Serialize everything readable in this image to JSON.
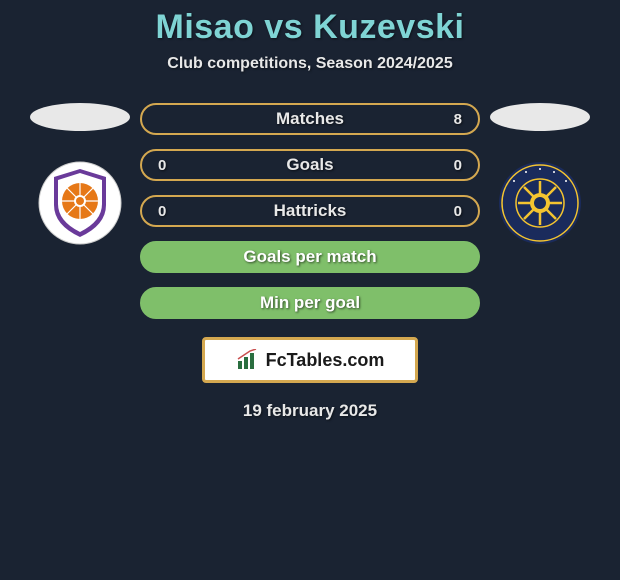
{
  "background_color": "#1a2332",
  "title": {
    "text": "Misao vs Kuzevski",
    "color": "#7fd4d4",
    "fontsize": 34
  },
  "subtitle": {
    "text": "Club competitions, Season 2024/2025",
    "color": "#e8e8e8",
    "fontsize": 16
  },
  "left_side": {
    "oval_color": "#e8e8e8",
    "club": {
      "name": "perth-glory",
      "outer_color": "#ffffff",
      "inner_bg": "#e67817",
      "accent_purple": "#6a3a9a",
      "accent_white": "#ffffff"
    }
  },
  "right_side": {
    "oval_color": "#e8e8e8",
    "club": {
      "name": "central-coast-mariners",
      "outer_color": "#1a2b5c",
      "inner_bg": "#1a2b5c",
      "accent_yellow": "#f4c430",
      "accent_white": "#ffffff"
    }
  },
  "stats": [
    {
      "label": "Matches",
      "left_value": "",
      "right_value": "8",
      "border_color": "#d4a850",
      "fill": "#1a2332",
      "text_color": "#e8e8e8"
    },
    {
      "label": "Goals",
      "left_value": "0",
      "right_value": "0",
      "border_color": "#d4a850",
      "fill": "#1a2332",
      "text_color": "#e8e8e8"
    },
    {
      "label": "Hattricks",
      "left_value": "0",
      "right_value": "0",
      "border_color": "#d4a850",
      "fill": "#1a2332",
      "text_color": "#e8e8e8"
    },
    {
      "label": "Goals per match",
      "left_value": "",
      "right_value": "",
      "border_color": "#7fbf6a",
      "fill": "#7fbf6a",
      "text_color": "#ffffff"
    },
    {
      "label": "Min per goal",
      "left_value": "",
      "right_value": "",
      "border_color": "#7fbf6a",
      "fill": "#7fbf6a",
      "text_color": "#ffffff"
    }
  ],
  "footer_logo": {
    "text": "FcTables.com",
    "box_bg": "#ffffff",
    "box_border": "#d4a850",
    "text_color": "#1a1a1a",
    "icon_color": "#2a6e3f"
  },
  "date": {
    "text": "19 february 2025",
    "color": "#e8e8e8",
    "fontsize": 17
  }
}
